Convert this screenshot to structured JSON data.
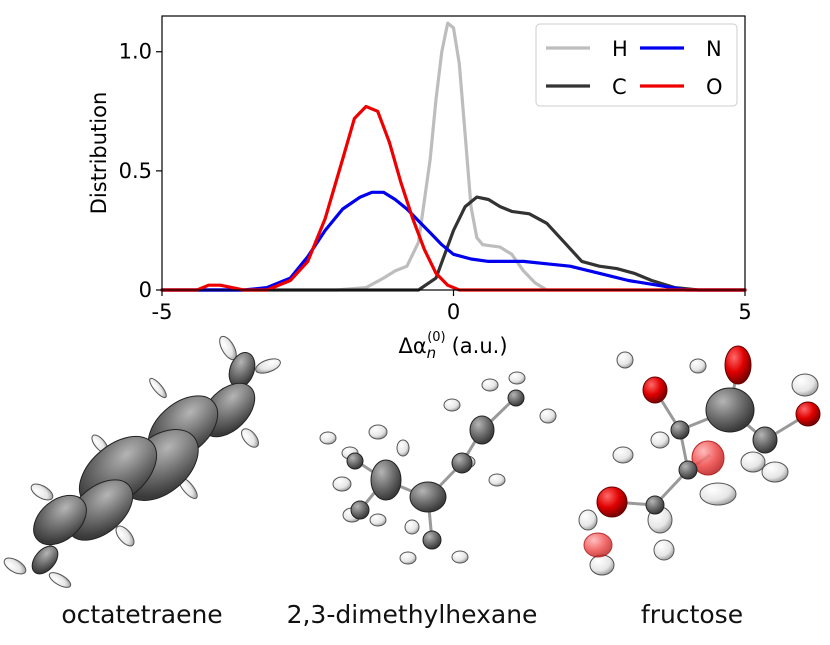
{
  "chart_data": {
    "type": "line",
    "ylabel": "Distribution",
    "xlabel_base": "Δα",
    "xlabel_sub": "n",
    "xlabel_sup": "(0)",
    "xlabel_unit": "(a.u.)",
    "xlim": [
      -5,
      5
    ],
    "ylim": [
      0,
      1.15
    ],
    "x_ticks": [
      {
        "value": -5,
        "label": "-5"
      },
      {
        "value": 0,
        "label": "0"
      },
      {
        "value": 5,
        "label": "5"
      }
    ],
    "y_ticks": [
      {
        "value": 0,
        "label": "0"
      },
      {
        "value": 0.5,
        "label": "0.5"
      },
      {
        "value": 1.0,
        "label": "1.0"
      }
    ],
    "grid": false,
    "legend_position": "top-right",
    "series": [
      {
        "name": "H",
        "color": "#bdbdbd",
        "x": [
          -5,
          -2.0,
          -1.5,
          -1.2,
          -1.0,
          -0.8,
          -0.6,
          -0.4,
          -0.3,
          -0.2,
          -0.1,
          0.0,
          0.1,
          0.2,
          0.3,
          0.4,
          0.5,
          0.8,
          1.0,
          1.2,
          1.4,
          1.6,
          5
        ],
        "y": [
          0,
          0.0,
          0.01,
          0.05,
          0.08,
          0.1,
          0.2,
          0.55,
          0.8,
          1.0,
          1.12,
          1.1,
          0.95,
          0.65,
          0.35,
          0.22,
          0.19,
          0.18,
          0.15,
          0.08,
          0.03,
          0.0,
          0
        ]
      },
      {
        "name": "C",
        "color": "#333333",
        "x": [
          -5,
          -0.6,
          -0.3,
          0.0,
          0.2,
          0.4,
          0.6,
          0.8,
          1.0,
          1.3,
          1.6,
          1.9,
          2.2,
          2.5,
          2.8,
          3.1,
          3.4,
          3.8,
          4.2,
          5
        ],
        "y": [
          0,
          0.0,
          0.05,
          0.25,
          0.35,
          0.39,
          0.38,
          0.35,
          0.33,
          0.32,
          0.28,
          0.2,
          0.12,
          0.1,
          0.09,
          0.07,
          0.04,
          0.01,
          0.0,
          0
        ]
      },
      {
        "name": "N",
        "color": "#0000ee",
        "x": [
          -5,
          -3.6,
          -3.2,
          -2.8,
          -2.5,
          -2.2,
          -1.9,
          -1.6,
          -1.4,
          -1.2,
          -1.0,
          -0.8,
          -0.6,
          -0.4,
          -0.2,
          0.0,
          0.3,
          0.6,
          0.9,
          1.2,
          1.6,
          2.0,
          2.5,
          3.0,
          3.5,
          4.0,
          5
        ],
        "y": [
          0,
          0.0,
          0.01,
          0.05,
          0.14,
          0.25,
          0.34,
          0.39,
          0.41,
          0.41,
          0.38,
          0.34,
          0.29,
          0.24,
          0.19,
          0.15,
          0.13,
          0.12,
          0.12,
          0.12,
          0.11,
          0.1,
          0.07,
          0.04,
          0.02,
          0.0,
          0
        ]
      },
      {
        "name": "O",
        "color": "#ee0000",
        "x": [
          -5,
          -4.4,
          -4.2,
          -4.0,
          -3.8,
          -3.6,
          -3.2,
          -2.8,
          -2.5,
          -2.2,
          -1.9,
          -1.7,
          -1.5,
          -1.3,
          -1.1,
          -0.9,
          -0.7,
          -0.5,
          -0.3,
          -0.1,
          0.1,
          5
        ],
        "y": [
          0,
          0.0,
          0.02,
          0.02,
          0.01,
          0.0,
          0.0,
          0.04,
          0.12,
          0.3,
          0.55,
          0.72,
          0.77,
          0.75,
          0.62,
          0.45,
          0.3,
          0.17,
          0.07,
          0.02,
          0.0,
          0
        ]
      }
    ]
  },
  "molecules": [
    {
      "name": "octatetraene"
    },
    {
      "name": "2,3-dimethylhexane"
    },
    {
      "name": "fructose"
    }
  ],
  "colors": {
    "carbon": "#6e6e6e",
    "hydrogen": "#e8e8e8",
    "oxygen": "#e00000"
  }
}
